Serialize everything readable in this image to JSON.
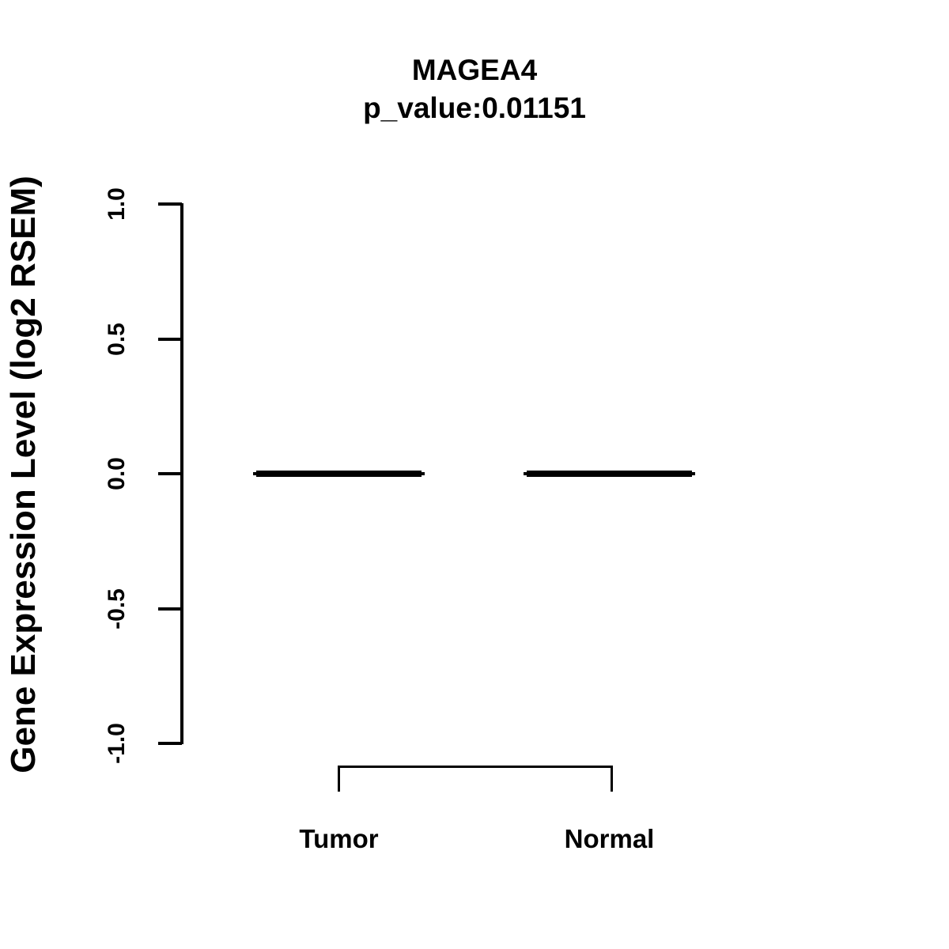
{
  "chart_data": {
    "type": "boxplot",
    "title": "MAGEA4",
    "subtitle": "p_value:0.01151",
    "gene": "MAGEA4",
    "p_value": "0.01151",
    "ylabel": "Gene Expression Level (log2 RSEM)",
    "xlabel": "",
    "categories": [
      "Tumor",
      "Normal"
    ],
    "series": [
      {
        "name": "Gene expression (log2 RSEM)",
        "medians": [
          0.0,
          0.0
        ],
        "q1": [
          0.0,
          0.0
        ],
        "q3": [
          0.0,
          0.0
        ],
        "whisker_low": [
          0.0,
          0.0
        ],
        "whisker_high": [
          0.0,
          0.0
        ]
      }
    ],
    "ylim": [
      -1.0,
      1.0
    ],
    "yticks": [
      {
        "value": 1.0,
        "label": "1.0"
      },
      {
        "value": 0.5,
        "label": "0.5"
      },
      {
        "value": 0.0,
        "label": "0.0"
      },
      {
        "value": -0.5,
        "label": "-0.5"
      },
      {
        "value": -1.0,
        "label": "-1.0"
      }
    ],
    "grid": false,
    "legend": null,
    "comparison_bracket": {
      "from": "Tumor",
      "to": "Normal"
    }
  },
  "colors": {
    "foreground": "#000000",
    "background": "#ffffff"
  }
}
